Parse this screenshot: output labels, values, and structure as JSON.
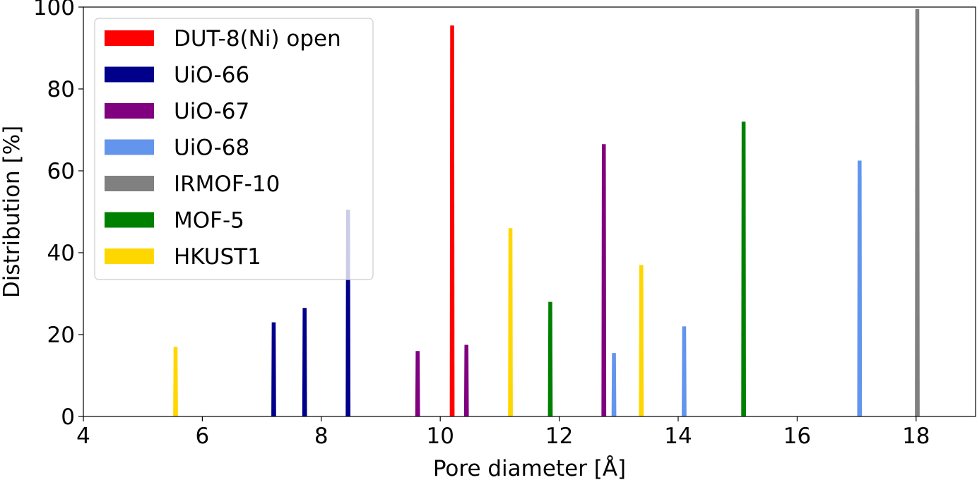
{
  "chart_data": {
    "type": "area",
    "xlabel": "Pore diameter [Å]",
    "ylabel": "Distribution [%]",
    "xlim": [
      4,
      19
    ],
    "ylim": [
      0,
      100
    ],
    "xticks": [
      4,
      6,
      8,
      10,
      12,
      14,
      16,
      18
    ],
    "yticks": [
      0,
      20,
      40,
      60,
      80,
      100
    ],
    "grid": false,
    "legend_position": "top-left",
    "series": [
      {
        "name": "DUT-8(Ni) open",
        "color": "#ff0000",
        "peaks": [
          {
            "x": 10.2,
            "y": 95.5
          }
        ]
      },
      {
        "name": "UiO-66",
        "color": "#00008b",
        "peaks": [
          {
            "x": 7.2,
            "y": 23
          },
          {
            "x": 7.72,
            "y": 26.5
          },
          {
            "x": 8.45,
            "y": 50.5
          }
        ]
      },
      {
        "name": "UiO-67",
        "color": "#800080",
        "peaks": [
          {
            "x": 9.62,
            "y": 16
          },
          {
            "x": 10.44,
            "y": 17.5
          },
          {
            "x": 12.75,
            "y": 66.5
          }
        ]
      },
      {
        "name": "UiO-68",
        "color": "#6495ed",
        "peaks": [
          {
            "x": 12.92,
            "y": 15.5
          },
          {
            "x": 14.1,
            "y": 22
          },
          {
            "x": 17.05,
            "y": 62.5
          }
        ]
      },
      {
        "name": "IRMOF-10",
        "color": "#808080",
        "peaks": [
          {
            "x": 18.02,
            "y": 99.5
          }
        ]
      },
      {
        "name": "MOF-5",
        "color": "#008000",
        "peaks": [
          {
            "x": 11.85,
            "y": 28
          },
          {
            "x": 15.1,
            "y": 72
          }
        ]
      },
      {
        "name": "HKUST1",
        "color": "#ffd700",
        "peaks": [
          {
            "x": 5.55,
            "y": 17
          },
          {
            "x": 11.18,
            "y": 46
          },
          {
            "x": 13.38,
            "y": 37
          }
        ]
      }
    ]
  }
}
